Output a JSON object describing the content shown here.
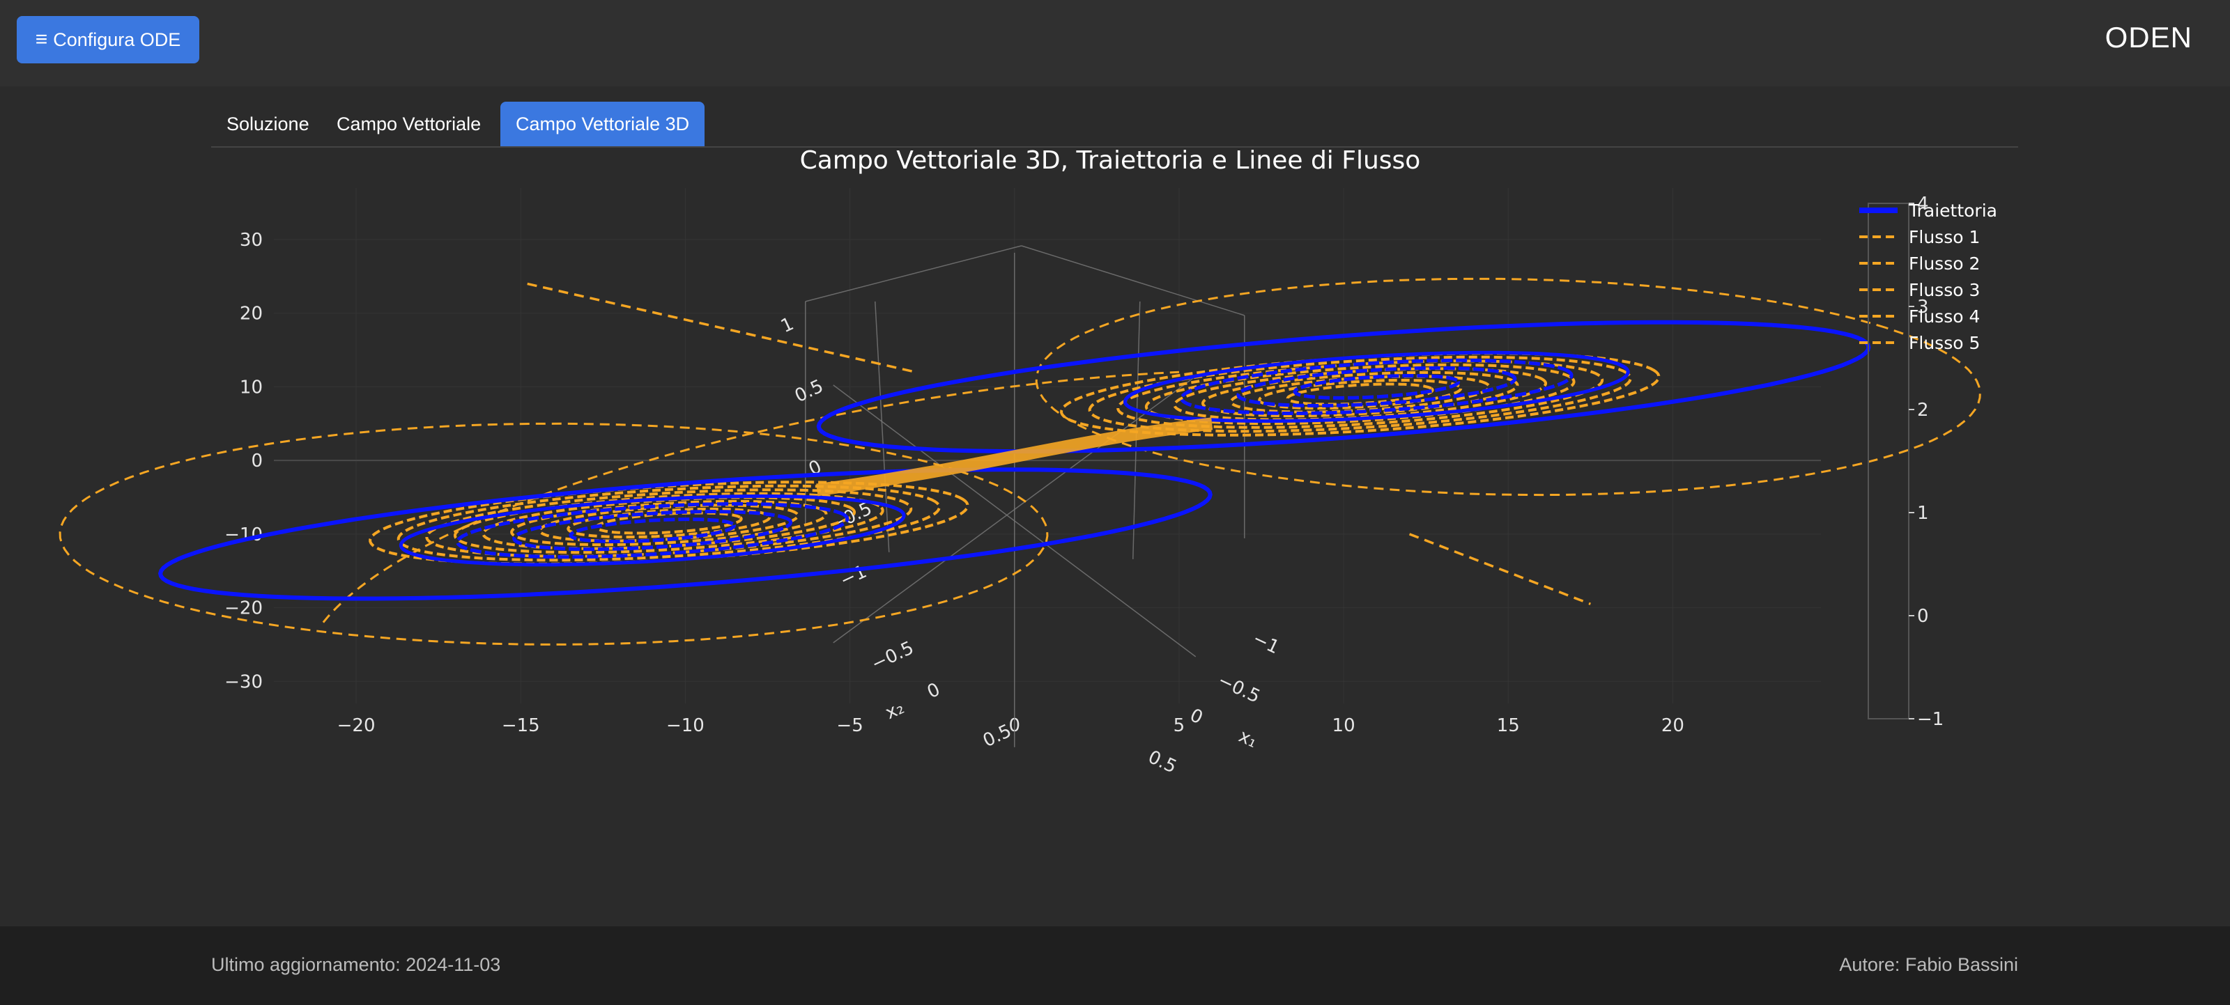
{
  "header": {
    "config_button_label": "Configura ODE",
    "menu_glyph": "≡",
    "brand": "ODEN"
  },
  "tabs": [
    {
      "label": "Soluzione",
      "active": false
    },
    {
      "label": "Campo Vettoriale",
      "active": false
    },
    {
      "label": "Campo Vettoriale 3D",
      "active": true
    }
  ],
  "chart_data": {
    "type": "line",
    "title": "Campo Vettoriale 3D, Traiettoria e Linee di Flusso",
    "xlabel": "",
    "ylabel": "",
    "xlim": [
      -22.5,
      24.5
    ],
    "ylim": [
      -33,
      37
    ],
    "x_ticks": [
      -20,
      -15,
      -10,
      -5,
      0,
      5,
      10,
      15,
      20
    ],
    "y_ticks": [
      -30,
      -20,
      -10,
      0,
      10,
      20,
      30
    ],
    "grid": true,
    "legend_position": "top-right",
    "series": [
      {
        "name": "Traiettoria",
        "style": "solid",
        "color": "#0a14ff"
      },
      {
        "name": "Flusso 1",
        "style": "dashed",
        "color": "#f5a623"
      },
      {
        "name": "Flusso 2",
        "style": "dashed",
        "color": "#f5a623"
      },
      {
        "name": "Flusso 3",
        "style": "dashed",
        "color": "#f5a623"
      },
      {
        "name": "Flusso 4",
        "style": "dashed",
        "color": "#f5a623"
      },
      {
        "name": "Flusso 5",
        "style": "dashed",
        "color": "#f5a623"
      }
    ],
    "scene_3d": {
      "x1_label": "x₁",
      "x2_label": "x₂",
      "x1_ticks": [
        "−1",
        "−0.5",
        "0",
        "0.5"
      ],
      "x2_ticks": [
        "−0.5",
        "0",
        "0.5"
      ],
      "z_ticks": [
        "−1",
        "−0.5",
        "0",
        "0.5",
        "1"
      ]
    },
    "colorbar": {
      "range": [
        -1,
        4
      ],
      "ticks": [
        "−1",
        "0",
        "1",
        "2",
        "3",
        "4"
      ]
    }
  },
  "footer": {
    "updated": "Ultimo aggiornamento: 2024-11-03",
    "author": "Autore: Fabio Bassini"
  }
}
